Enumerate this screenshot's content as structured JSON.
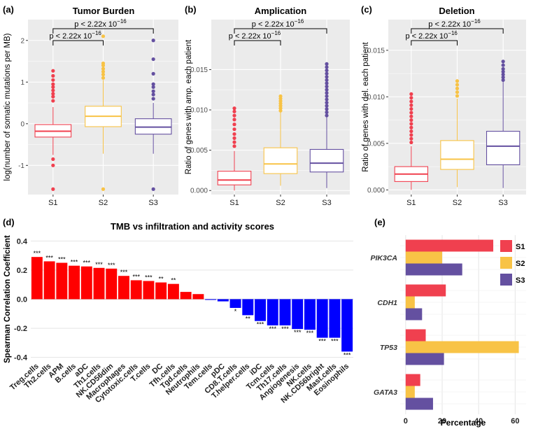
{
  "colors": {
    "S1": "#f0404f",
    "S2": "#f8c346",
    "S3": "#6450a0",
    "positive": "#ff0000",
    "negative": "#0000ff",
    "panel_bg": "#ebebeb",
    "grid": "#ffffff"
  },
  "chart_data": [
    {
      "panel": "(a)",
      "type": "boxplot",
      "title": "Tumor Burden",
      "xlabel": "",
      "ylabel": "log(number of somatic mutations per MB)",
      "categories": [
        "S1",
        "S2",
        "S3"
      ],
      "ylim": [
        -1.7,
        2.5
      ],
      "yticks": [
        -1,
        0,
        1,
        2
      ],
      "ytick_labels": [
        "-1",
        "0",
        "1",
        "2"
      ],
      "boxes": [
        {
          "group": "S1",
          "whisker_low": -0.75,
          "q1": -0.32,
          "median": -0.18,
          "q3": -0.02,
          "whisker_high": 0.4,
          "outliers": [
            0.55,
            0.65,
            0.72,
            0.8,
            0.88,
            0.95,
            1.05,
            1.15,
            1.27,
            -0.85,
            -1.0,
            -1.57
          ]
        },
        {
          "group": "S2",
          "whisker_low": -0.72,
          "q1": -0.07,
          "median": 0.18,
          "q3": 0.42,
          "whisker_high": 1.05,
          "outliers": [
            1.1,
            1.18,
            1.25,
            1.32,
            1.4,
            1.45,
            2.1,
            -1.57
          ]
        },
        {
          "group": "S3",
          "whisker_low": -0.72,
          "q1": -0.25,
          "median": -0.08,
          "q3": 0.12,
          "whisker_high": 0.5,
          "outliers": [
            0.6,
            0.7,
            0.78,
            0.88,
            0.95,
            1.2,
            1.55,
            2.0,
            -1.57
          ]
        }
      ],
      "comparisons": [
        {
          "from": "S1",
          "to": "S2",
          "label": "p < 2.22x 10",
          "exponent": "−16"
        },
        {
          "from": "S1",
          "to": "S3",
          "label": "p < 2.22x 10",
          "exponent": "−16"
        }
      ]
    },
    {
      "panel": "(b)",
      "type": "boxplot",
      "title": "Amplication",
      "xlabel": "",
      "ylabel": "Ratio of genes with amp. each patient",
      "categories": [
        "S1",
        "S2",
        "S3"
      ],
      "ylim": [
        -0.0005,
        0.0212
      ],
      "yticks": [
        0,
        0.005,
        0.01,
        0.015
      ],
      "ytick_labels": [
        "0.000",
        "0.005",
        "0.010",
        "0.015"
      ],
      "boxes": [
        {
          "group": "S1",
          "whisker_low": 0.0,
          "q1": 0.0007,
          "median": 0.0013,
          "q3": 0.0024,
          "whisker_high": 0.0049,
          "outliers": [
            0.0055,
            0.006,
            0.0065,
            0.007,
            0.0076,
            0.0082,
            0.0088,
            0.0093,
            0.0098,
            0.0102
          ]
        },
        {
          "group": "S2",
          "whisker_low": 0.0006,
          "q1": 0.0021,
          "median": 0.0033,
          "q3": 0.0053,
          "whisker_high": 0.0097,
          "outliers": [
            0.0099,
            0.0102,
            0.0105,
            0.0108,
            0.0111,
            0.0114,
            0.0117
          ]
        },
        {
          "group": "S3",
          "whisker_low": 0.0003,
          "q1": 0.0023,
          "median": 0.0034,
          "q3": 0.0051,
          "whisker_high": 0.0091,
          "outliers": [
            0.0093,
            0.0097,
            0.0101,
            0.0105,
            0.0109,
            0.0113,
            0.0117,
            0.0121,
            0.0125,
            0.0129,
            0.0133,
            0.0137,
            0.0141,
            0.0145,
            0.0149,
            0.0153,
            0.0157
          ]
        }
      ],
      "comparisons": [
        {
          "from": "S1",
          "to": "S2",
          "label": "p < 2.22x 10",
          "exponent": "−16"
        },
        {
          "from": "S1",
          "to": "S3",
          "label": "p < 2.22x 10",
          "exponent": "−16"
        }
      ]
    },
    {
      "panel": "(c)",
      "type": "boxplot",
      "title": "Deletion",
      "xlabel": "",
      "ylabel": "Ratio of genes with del. each patient",
      "categories": [
        "S1",
        "S2",
        "S3"
      ],
      "ylim": [
        -0.0005,
        0.0183
      ],
      "yticks": [
        0,
        0.005,
        0.01,
        0.015
      ],
      "ytick_labels": [
        "0.000",
        "0.005",
        "0.010",
        "0.015"
      ],
      "boxes": [
        {
          "group": "S1",
          "whisker_low": 0.0,
          "q1": 0.0009,
          "median": 0.0017,
          "q3": 0.0025,
          "whisker_high": 0.0047,
          "outliers": [
            0.0051,
            0.0055,
            0.0059,
            0.0063,
            0.0067,
            0.0071,
            0.0075,
            0.0079,
            0.0083,
            0.0087,
            0.0091,
            0.0095,
            0.0099,
            0.0103
          ]
        },
        {
          "group": "S2",
          "whisker_low": 0.0003,
          "q1": 0.0022,
          "median": 0.0033,
          "q3": 0.0053,
          "whisker_high": 0.0098,
          "outliers": [
            0.0101,
            0.0105,
            0.0109,
            0.0113,
            0.0117
          ]
        },
        {
          "group": "S3",
          "whisker_low": 0.0002,
          "q1": 0.0027,
          "median": 0.0047,
          "q3": 0.0063,
          "whisker_high": 0.0116,
          "outliers": [
            0.0118,
            0.0121,
            0.0124,
            0.0127,
            0.013,
            0.0134,
            0.0138
          ]
        }
      ],
      "comparisons": [
        {
          "from": "S1",
          "to": "S2",
          "label": "p < 2.22x 10",
          "exponent": "−16"
        },
        {
          "from": "S1",
          "to": "S3",
          "label": "p < 2.22x 10",
          "exponent": "−16"
        }
      ]
    },
    {
      "panel": "(d)",
      "type": "bar",
      "title": "TMB vs infiltration and activity scores",
      "xlabel": "",
      "ylabel": "Spearman Correlation Coefficient",
      "ylim": [
        -0.44,
        0.44
      ],
      "yticks": [
        -0.4,
        -0.2,
        0.0,
        0.2,
        0.4
      ],
      "ytick_labels": [
        "-0.4",
        "-0.2",
        "0.0",
        "0.2",
        "0.4"
      ],
      "categories": [
        "Treg.cells",
        "Th2.cells",
        "APM",
        "B.cells",
        "aDC",
        "Th1.cells",
        "NK.CD56dim",
        "Macrophages",
        "Cytotoxic.cells",
        "T.cells",
        "DC",
        "Tfh.cells",
        "Tgd.cells",
        "Neutrophils",
        "Tem.cells",
        "pDC",
        "CD8.T.cells",
        "T.helper.cells",
        "iDC",
        "Tcm.cells",
        "Th17.cells",
        "Angiogenesis",
        "NK.cells",
        "NK.CD56bright",
        "Mast.cells",
        "Eosinophils"
      ],
      "values": [
        0.29,
        0.26,
        0.25,
        0.23,
        0.225,
        0.215,
        0.21,
        0.16,
        0.13,
        0.125,
        0.115,
        0.105,
        0.05,
        0.035,
        -0.005,
        -0.015,
        -0.06,
        -0.11,
        -0.15,
        -0.18,
        -0.18,
        -0.205,
        -0.21,
        -0.265,
        -0.265,
        -0.36
      ],
      "significance": [
        "***",
        "***",
        "***",
        "***",
        "***",
        "***",
        "***",
        "***",
        "***",
        "***",
        "**",
        "**",
        "",
        "",
        "",
        "",
        "*",
        "**",
        "***",
        "***",
        "***",
        "***",
        "***",
        "***",
        "***",
        "***"
      ]
    },
    {
      "panel": "(e)",
      "type": "bar",
      "orientation": "horizontal",
      "title": "",
      "xlabel": "Percentage",
      "ylabel": "",
      "xlim": [
        -3,
        66
      ],
      "xticks": [
        0,
        20,
        40,
        60
      ],
      "xtick_labels": [
        "0",
        "20",
        "40",
        "60"
      ],
      "categories": [
        "PIK3CA",
        "CDH1",
        "TP53",
        "GATA3"
      ],
      "series": [
        {
          "name": "S1",
          "values": [
            48,
            22,
            11,
            8
          ]
        },
        {
          "name": "S2",
          "values": [
            20,
            5,
            62,
            5
          ]
        },
        {
          "name": "S3",
          "values": [
            31,
            9,
            21,
            15
          ]
        }
      ],
      "legend": [
        "S1",
        "S2",
        "S3"
      ],
      "legend_position": "top-right"
    }
  ]
}
